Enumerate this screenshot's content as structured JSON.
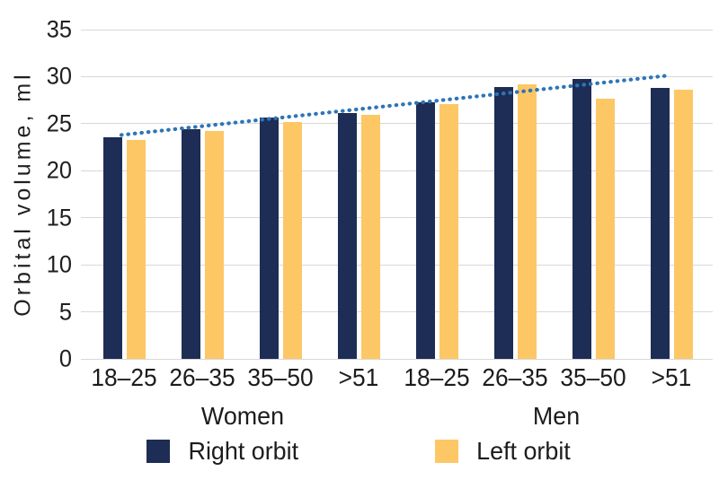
{
  "chart_data": {
    "type": "bar",
    "title": "",
    "ylabel": "Orbital volume, ml",
    "xlabel": "",
    "ylim": [
      0,
      35
    ],
    "yticks": [
      0,
      5,
      10,
      15,
      20,
      25,
      30,
      35
    ],
    "grid": true,
    "legend_position": "bottom",
    "group_labels": [
      "Women",
      "Men"
    ],
    "categories": [
      "18–25",
      "26–35",
      "35–50",
      ">51",
      "18–25",
      "26–35",
      "35–50",
      ">51"
    ],
    "series": [
      {
        "name": "Right orbit",
        "color": "#1e2d55",
        "values": [
          23.6,
          24.4,
          25.7,
          26.1,
          27.3,
          28.9,
          29.8,
          28.8
        ]
      },
      {
        "name": "Left orbit",
        "color": "#fdc766",
        "values": [
          23.3,
          24.2,
          25.2,
          25.9,
          27.1,
          29.2,
          27.7,
          28.6
        ]
      }
    ],
    "trendline": {
      "type": "linear",
      "style": "dotted",
      "color": "#2e75b6",
      "start_value": 23.8,
      "end_value": 30.1
    },
    "colors": {
      "gridline": "#d8d8d8",
      "text": "#1f1f1f"
    }
  }
}
